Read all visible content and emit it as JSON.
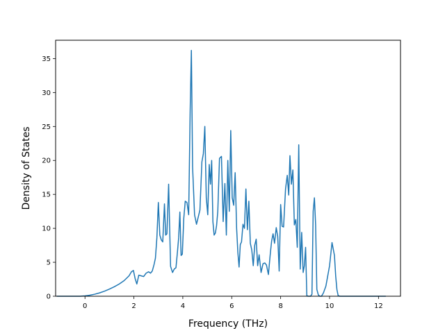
{
  "chart_data": {
    "type": "line",
    "title": "",
    "xlabel": "Frequency (THz)",
    "ylabel": "Density of States",
    "xlim": [
      -1.2,
      12.9
    ],
    "ylim": [
      0,
      37.7
    ],
    "xticks": [
      0,
      2,
      4,
      6,
      8,
      10,
      12
    ],
    "yticks": [
      0,
      5,
      10,
      15,
      20,
      25,
      30,
      35
    ],
    "grid": false,
    "legend": "none",
    "series": [
      {
        "color": "#1f77b4",
        "x": [
          -1.15,
          -0.6,
          -0.2,
          0.0,
          0.2,
          0.4,
          0.6,
          0.8,
          1.0,
          1.2,
          1.4,
          1.6,
          1.8,
          1.9,
          1.98,
          2.05,
          2.12,
          2.2,
          2.3,
          2.4,
          2.5,
          2.6,
          2.68,
          2.75,
          2.82,
          2.88,
          2.94,
          3.0,
          3.06,
          3.12,
          3.18,
          3.25,
          3.3,
          3.35,
          3.42,
          3.5,
          3.58,
          3.65,
          3.72,
          3.78,
          3.83,
          3.88,
          3.93,
          3.98,
          4.04,
          4.1,
          4.17,
          4.24,
          4.3,
          4.35,
          4.4,
          4.48,
          4.56,
          4.62,
          4.7,
          4.78,
          4.84,
          4.9,
          4.96,
          5.02,
          5.08,
          5.13,
          5.18,
          5.23,
          5.28,
          5.33,
          5.38,
          5.43,
          5.5,
          5.58,
          5.65,
          5.72,
          5.78,
          5.84,
          5.9,
          5.96,
          6.02,
          6.08,
          6.14,
          6.2,
          6.25,
          6.3,
          6.35,
          6.4,
          6.46,
          6.52,
          6.58,
          6.64,
          6.7,
          6.76,
          6.82,
          6.88,
          6.94,
          7.0,
          7.06,
          7.12,
          7.2,
          7.28,
          7.35,
          7.42,
          7.5,
          7.57,
          7.63,
          7.69,
          7.75,
          7.82,
          7.88,
          7.94,
          8.0,
          8.06,
          8.12,
          8.2,
          8.27,
          8.33,
          8.38,
          8.44,
          8.5,
          8.56,
          8.62,
          8.68,
          8.74,
          8.8,
          8.86,
          8.92,
          8.97,
          9.02,
          9.07,
          9.12,
          9.17,
          9.22,
          9.28,
          9.33,
          9.38,
          9.43,
          9.48,
          9.54,
          9.6,
          9.67,
          9.75,
          9.85,
          10.0,
          10.1,
          10.2,
          10.25,
          10.3,
          10.35,
          10.42,
          10.5,
          10.55,
          10.6,
          10.7,
          10.8,
          10.9,
          10.97,
          11.02,
          11.08,
          11.14,
          11.2,
          11.3,
          11.5,
          11.8,
          12.3
        ],
        "values": [
          0,
          0,
          0,
          0.05,
          0.15,
          0.3,
          0.5,
          0.75,
          1.05,
          1.4,
          1.8,
          2.3,
          3.0,
          3.6,
          3.8,
          2.6,
          1.8,
          3.1,
          3.0,
          2.9,
          3.4,
          3.6,
          3.4,
          3.7,
          4.6,
          5.6,
          8.6,
          13.8,
          9.0,
          8.3,
          8.0,
          13.6,
          9.0,
          9.2,
          16.5,
          4.4,
          3.5,
          4.0,
          4.2,
          6.5,
          8.6,
          12.4,
          6.0,
          6.2,
          11.5,
          14.0,
          13.8,
          12.0,
          27.2,
          36.2,
          19.0,
          12.0,
          10.6,
          11.5,
          12.7,
          19.8,
          21.0,
          25.0,
          14.5,
          12.0,
          19.4,
          16.5,
          20.0,
          11.0,
          9.0,
          9.3,
          10.4,
          12.5,
          20.3,
          20.6,
          11.0,
          16.6,
          9.0,
          20.0,
          12.5,
          24.4,
          14.5,
          13.4,
          18.2,
          10.0,
          6.5,
          4.3,
          7.6,
          8.0,
          10.6,
          10.0,
          15.8,
          9.8,
          14.0,
          7.8,
          6.8,
          4.5,
          7.5,
          8.4,
          4.5,
          6.1,
          3.5,
          4.8,
          4.9,
          4.6,
          3.2,
          6.0,
          8.1,
          9.2,
          7.8,
          10.1,
          8.8,
          3.7,
          13.5,
          10.3,
          10.2,
          15.8,
          17.8,
          14.9,
          20.7,
          16.5,
          18.6,
          10.5,
          11.3,
          7.2,
          22.3,
          4.0,
          9.4,
          3.5,
          4.5,
          7.2,
          0.1,
          0,
          0,
          0,
          0.3,
          12.5,
          14.5,
          10.5,
          1.0,
          0.2,
          0,
          0,
          0.5,
          1.5,
          4.5,
          7.9,
          6.0,
          3.0,
          1.0,
          0.1,
          0,
          0,
          0,
          0,
          0,
          0,
          0,
          0,
          0,
          0,
          0,
          0,
          0,
          0,
          0,
          0
        ]
      }
    ]
  }
}
